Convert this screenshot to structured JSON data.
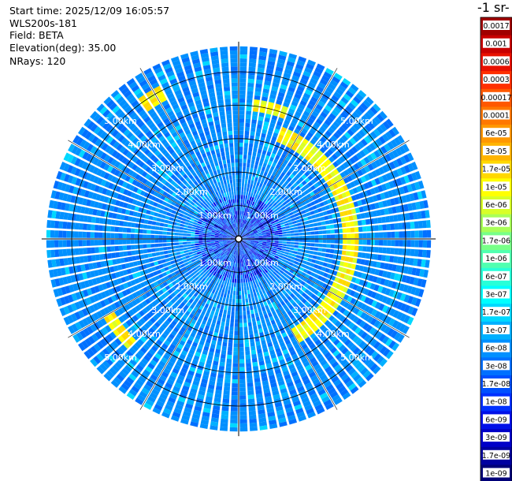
{
  "info": {
    "start_time": "Start time: 2025/12/09 16:05:57",
    "instrument": "WLS200s-181",
    "field": "Field: BETA",
    "elevation": "Elevation(deg): 35.00",
    "nrays": "NRays: 120"
  },
  "colorbar": {
    "title": "-1 sr-",
    "labels": [
      "0.0017",
      "0.001",
      "0.0006",
      "0.0003",
      "0.00017",
      "0.0001",
      "6e-05",
      "3e-05",
      "1.7e-05",
      "1e-05",
      "6e-06",
      "3e-06",
      "1.7e-06",
      "1e-06",
      "6e-07",
      "3e-07",
      "1.7e-07",
      "1e-07",
      "6e-08",
      "3e-08",
      "1.7e-08",
      "1e-08",
      "6e-09",
      "3e-09",
      "1.7e-09",
      "1e-09"
    ],
    "colors": [
      "#a00000",
      "#c80000",
      "#e81000",
      "#ff3000",
      "#ff5800",
      "#ff7800",
      "#ff9800",
      "#ffb400",
      "#ffd800",
      "#ffff00",
      "#d8ff28",
      "#a8ff58",
      "#78ff88",
      "#50ffb0",
      "#28ffd8",
      "#00ffff",
      "#00d8ff",
      "#00b0ff",
      "#0090ff",
      "#0070ff",
      "#0050ff",
      "#0030ff",
      "#0010e8",
      "#0000c8",
      "#0000a0",
      "#000078"
    ]
  },
  "chart_data": {
    "type": "heatmap",
    "projection": "polar-ppi",
    "nrays": 120,
    "range_rings_km": [
      1,
      2,
      3,
      4,
      5
    ],
    "ring_labels": [
      "1.00km",
      "2.00km",
      "3.00km",
      "4.00km",
      "5.00km"
    ],
    "max_range_km": 5.7,
    "background_level": "1e-07",
    "features": [
      {
        "description_level": "1e-05",
        "shape": "arc",
        "range_km": [
          3.85,
          4.25
        ],
        "azimuth_deg": [
          5,
          20
        ]
      },
      {
        "description_level": "1e-05",
        "shape": "arc",
        "range_km": [
          3.15,
          3.55
        ],
        "azimuth_deg": [
          20,
          150
        ]
      },
      {
        "description_level": "1e-05",
        "shape": "arc",
        "range_km": [
          4.3,
          4.7
        ],
        "azimuth_deg": [
          225,
          240
        ]
      },
      {
        "description_level": "1e-05",
        "shape": "arc",
        "range_km": [
          4.7,
          5.2
        ],
        "azimuth_deg": [
          325,
          333
        ]
      }
    ]
  }
}
